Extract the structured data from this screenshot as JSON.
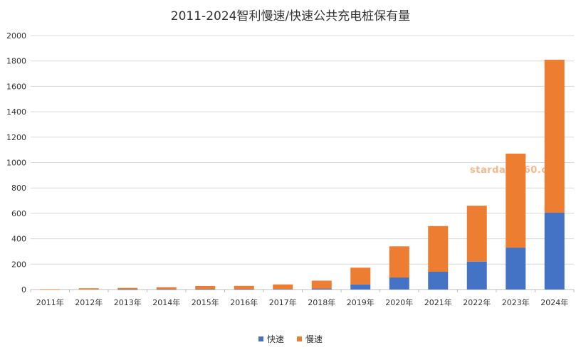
{
  "colors": {
    "fast": "#4472c4",
    "slow": "#ed7d31",
    "watermark": "#ed7d31",
    "grid": "#d9d9d9",
    "axis": "#bfbfbf",
    "text": "#333333"
  },
  "watermark": "stardata360.com",
  "chart_data": {
    "type": "bar",
    "stacked": true,
    "title": "2011-2024智利慢速/快速公共充电桩保有量",
    "xlabel": "",
    "ylabel": "",
    "ylim": [
      0,
      2000
    ],
    "yticks": [
      0,
      200,
      400,
      600,
      800,
      1000,
      1200,
      1400,
      1600,
      1800,
      2000
    ],
    "grid": true,
    "legend_position": "bottom",
    "categories": [
      "2011年",
      "2012年",
      "2013年",
      "2014年",
      "2015年",
      "2016年",
      "2017年",
      "2018年",
      "2019年",
      "2020年",
      "2021年",
      "2022年",
      "2023年",
      "2024年"
    ],
    "series": [
      {
        "name": "快速",
        "color": "#4472c4",
        "values": [
          0,
          0,
          1,
          2,
          3,
          3,
          4,
          8,
          40,
          95,
          140,
          220,
          330,
          605
        ]
      },
      {
        "name": "慢速",
        "color": "#ed7d31",
        "values": [
          2,
          10,
          12,
          16,
          25,
          26,
          36,
          62,
          132,
          245,
          360,
          440,
          740,
          1205
        ]
      }
    ]
  }
}
